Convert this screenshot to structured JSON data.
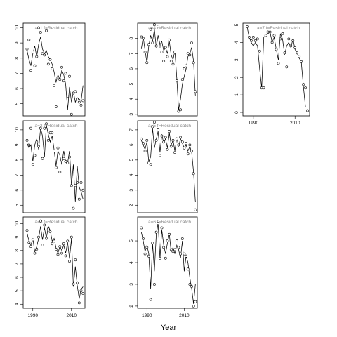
{
  "xlabel": "Year",
  "colors": {
    "line": "#000000",
    "title": "#888888"
  },
  "chart_data": [
    {
      "type": "line",
      "title": "a=1 f=Residual catch",
      "xlim": [
        1985,
        2017
      ],
      "ylim": [
        4.2,
        10.3
      ],
      "yticks": [
        5,
        6,
        7,
        8,
        9,
        10
      ],
      "xticks": [],
      "series": [
        {
          "name": "fitted",
          "x": [
            1987,
            1988,
            1989,
            1990,
            1991,
            1992,
            1993,
            1994,
            1995,
            1996,
            1997,
            1998,
            1999,
            2000,
            2001,
            2002,
            2003,
            2004,
            2005,
            2006,
            2007,
            2008,
            2009,
            2010,
            2011,
            2012,
            2013,
            2014,
            2015,
            2016
          ],
          "y": [
            8.5,
            7.9,
            7.5,
            8.3,
            8.8,
            8.1,
            8.9,
            9.4,
            8.6,
            8.3,
            8.5,
            8.1,
            7.9,
            7.6,
            7.1,
            6.4,
            6.9,
            6.6,
            7.2,
            6.9,
            6.3,
            4.6,
            6.1,
            5.1,
            5.8,
            5.1,
            5.4,
            5.3,
            5.2,
            6.2
          ]
        },
        {
          "name": "observed",
          "x": [
            1987,
            1988,
            1989,
            1990,
            1991,
            1992,
            1993,
            1994,
            1995,
            1996,
            1997,
            1998,
            1999,
            2000,
            2001,
            2002,
            2003,
            2004,
            2005,
            2006,
            2007,
            2008,
            2009,
            2010,
            2011,
            2012,
            2013,
            2014,
            2015,
            2016
          ],
          "y": [
            8.6,
            9.2,
            7.2,
            8.4,
            7.5,
            8.1,
            10.0,
            9.7,
            8.3,
            8.2,
            9.8,
            7.6,
            7.9,
            7.3,
            6.2,
            4.8,
            6.7,
            6.6,
            7.4,
            6.5,
            7.0,
            5.5,
            6.8,
            4.3,
            5.7,
            5.8,
            5.3,
            5.1,
            4.9,
            5.2
          ]
        }
      ]
    },
    {
      "type": "line",
      "title": "a=4 f=Residual catch",
      "xlim": [
        1985,
        2017
      ],
      "ylim": [
        2.9,
        9.0
      ],
      "yticks": [
        3,
        4,
        5,
        6,
        7,
        8
      ],
      "xticks": [],
      "series": [
        {
          "name": "fitted",
          "x": [
            1987,
            1988,
            1989,
            1990,
            1991,
            1992,
            1993,
            1994,
            1995,
            1996,
            1997,
            1998,
            1999,
            2000,
            2001,
            2002,
            2003,
            2004,
            2005,
            2006,
            2007,
            2008,
            2009,
            2010,
            2011,
            2012,
            2013,
            2014,
            2015,
            2016
          ],
          "y": [
            7.3,
            8.1,
            7.2,
            6.4,
            7.5,
            8.2,
            7.8,
            8.6,
            7.4,
            8.2,
            7.6,
            7.8,
            7.2,
            7.4,
            7.0,
            7.8,
            6.9,
            6.6,
            7.2,
            5.4,
            3.3,
            4.0,
            5.0,
            5.5,
            6.0,
            6.8,
            7.0,
            7.4,
            6.5,
            4.2
          ]
        },
        {
          "name": "observed",
          "x": [
            1987,
            1988,
            1989,
            1990,
            1991,
            1992,
            1993,
            1994,
            1995,
            1996,
            1997,
            1998,
            1999,
            2000,
            2001,
            2002,
            2003,
            2004,
            2005,
            2006,
            2007,
            2008,
            2009,
            2010,
            2011,
            2012,
            2013,
            2014,
            2015,
            2016
          ],
          "y": [
            8.1,
            8.0,
            7.1,
            6.4,
            7.6,
            8.6,
            7.7,
            8.9,
            7.5,
            8.8,
            7.5,
            7.1,
            6.5,
            7.4,
            6.8,
            7.9,
            6.5,
            6.3,
            7.1,
            5.2,
            3.2,
            3.3,
            5.3,
            6.0,
            6.2,
            7.0,
            6.9,
            7.7,
            6.4,
            4.5
          ]
        }
      ]
    },
    {
      "type": "line",
      "title": "a=7 f=Residual catch",
      "xlim": [
        1985,
        2017
      ],
      "ylim": [
        -0.2,
        5.1
      ],
      "yticks": [
        0,
        1,
        2,
        3,
        4,
        5
      ],
      "xticks": [
        1990,
        2010
      ],
      "series": [
        {
          "name": "fitted",
          "x": [
            1987,
            1988,
            1989,
            1990,
            1991,
            1992,
            1993,
            1994,
            1995,
            1996,
            1997,
            1998,
            1999,
            2000,
            2001,
            2002,
            2003,
            2004,
            2005,
            2006,
            2007,
            2008,
            2009,
            2010,
            2011,
            2012,
            2013,
            2014,
            2015,
            2016
          ],
          "y": [
            4.9,
            4.3,
            4.0,
            3.8,
            4.0,
            3.8,
            2.5,
            1.4,
            4.3,
            4.4,
            4.5,
            4.6,
            4.0,
            4.3,
            3.6,
            3.0,
            4.5,
            4.2,
            3.3,
            3.8,
            4.0,
            3.7,
            4.2,
            3.6,
            3.4,
            3.1,
            2.9,
            1.5,
            0.3,
            0.3
          ]
        },
        {
          "name": "observed",
          "x": [
            1987,
            1988,
            1989,
            1990,
            1991,
            1992,
            1993,
            1994,
            1995,
            1996,
            1997,
            1998,
            1999,
            2000,
            2001,
            2002,
            2003,
            2004,
            2005,
            2006,
            2007,
            2008,
            2009,
            2010,
            2011,
            2012,
            2013,
            2014,
            2015,
            2016
          ],
          "y": [
            4.9,
            4.3,
            4.1,
            4.3,
            4.1,
            4.2,
            3.5,
            1.4,
            1.4,
            4.4,
            4.6,
            4.6,
            4.0,
            4.4,
            3.6,
            2.8,
            4.2,
            4.5,
            3.4,
            2.6,
            4.2,
            3.8,
            4.1,
            3.7,
            3.4,
            3.2,
            2.9,
            1.6,
            1.4,
            0.1
          ]
        }
      ]
    },
    {
      "type": "line",
      "title": "a=2 f=Residual catch",
      "xlim": [
        1985,
        2017
      ],
      "ylim": [
        4.5,
        10.6
      ],
      "yticks": [
        5,
        6,
        7,
        8,
        9,
        10
      ],
      "xticks": [],
      "series": [
        {
          "name": "fitted",
          "x": [
            1987,
            1988,
            1989,
            1990,
            1991,
            1992,
            1993,
            1994,
            1995,
            1996,
            1997,
            1998,
            1999,
            2000,
            2001,
            2002,
            2003,
            2004,
            2005,
            2006,
            2007,
            2008,
            2009,
            2010,
            2011,
            2012,
            2013,
            2014,
            2015,
            2016
          ],
          "y": [
            9.1,
            8.8,
            9.0,
            7.9,
            9.0,
            9.4,
            8.7,
            10.1,
            9.6,
            8.2,
            10.3,
            9.7,
            9.2,
            9.6,
            8.7,
            7.6,
            8.6,
            8.3,
            7.7,
            8.6,
            7.9,
            7.8,
            8.6,
            6.3,
            7.7,
            5.2,
            7.6,
            6.2,
            5.9,
            5.4
          ]
        },
        {
          "name": "observed",
          "x": [
            1987,
            1988,
            1989,
            1990,
            1991,
            1992,
            1993,
            1994,
            1995,
            1996,
            1997,
            1998,
            1999,
            2000,
            2001,
            2002,
            2003,
            2004,
            2005,
            2006,
            2007,
            2008,
            2009,
            2010,
            2011,
            2012,
            2013,
            2014,
            2015,
            2016
          ],
          "y": [
            9.3,
            9.0,
            10.1,
            7.7,
            8.3,
            9.2,
            8.9,
            10.1,
            8.1,
            10.1,
            10.4,
            9.3,
            9.8,
            9.8,
            8.6,
            7.5,
            8.8,
            7.2,
            8.0,
            8.1,
            7.9,
            7.8,
            8.2,
            6.3,
            4.8,
            6.3,
            6.5,
            5.4,
            6.5,
            6.0
          ]
        }
      ]
    },
    {
      "type": "line",
      "title": "a=5 f=Residual catch",
      "xlim": [
        1985,
        2017
      ],
      "ylim": [
        1.5,
        7.6
      ],
      "yticks": [
        2,
        3,
        4,
        5,
        6,
        7
      ],
      "xticks": [],
      "series": [
        {
          "name": "fitted",
          "x": [
            1987,
            1988,
            1989,
            1990,
            1991,
            1992,
            1993,
            1994,
            1995,
            1996,
            1997,
            1998,
            1999,
            2000,
            2001,
            2002,
            2003,
            2004,
            2005,
            2006,
            2007,
            2008,
            2009,
            2010,
            2011,
            2012,
            2013,
            2014,
            2015,
            2016
          ],
          "y": [
            6.3,
            6.0,
            5.7,
            6.2,
            4.9,
            5.2,
            7.1,
            5.8,
            6.4,
            6.9,
            5.5,
            6.7,
            6.1,
            6.4,
            5.8,
            6.8,
            6.0,
            6.3,
            5.6,
            6.5,
            5.9,
            6.4,
            6.1,
            5.8,
            6.0,
            5.6,
            5.9,
            5.5,
            4.2,
            2.2
          ]
        },
        {
          "name": "observed",
          "x": [
            1987,
            1988,
            1989,
            1990,
            1991,
            1992,
            1993,
            1994,
            1995,
            1996,
            1997,
            1998,
            1999,
            2000,
            2001,
            2002,
            2003,
            2004,
            2005,
            2006,
            2007,
            2008,
            2009,
            2010,
            2011,
            2012,
            2013,
            2014,
            2015,
            2016
          ],
          "y": [
            6.4,
            6.1,
            5.6,
            6.3,
            4.8,
            4.7,
            7.2,
            7.5,
            6.3,
            7.0,
            5.3,
            6.6,
            6.2,
            6.5,
            5.7,
            6.9,
            5.9,
            6.3,
            5.5,
            6.4,
            6.0,
            6.5,
            6.2,
            5.8,
            6.1,
            5.4,
            6.0,
            5.6,
            4.1,
            1.7
          ]
        }
      ]
    },
    {
      "type": "line",
      "title": "a=3 f=Residual catch",
      "xlim": [
        1985,
        2017
      ],
      "ylim": [
        3.7,
        10.5
      ],
      "yticks": [
        4,
        5,
        6,
        7,
        8,
        9,
        10
      ],
      "xticks": [
        1990,
        2010
      ],
      "series": [
        {
          "name": "fitted",
          "x": [
            1987,
            1988,
            1989,
            1990,
            1991,
            1992,
            1993,
            1994,
            1995,
            1996,
            1997,
            1998,
            1999,
            2000,
            2001,
            2002,
            2003,
            2004,
            2005,
            2006,
            2007,
            2008,
            2009,
            2010,
            2011,
            2012,
            2013,
            2014,
            2015,
            2016
          ],
          "y": [
            9.3,
            8.7,
            8.4,
            8.9,
            7.9,
            8.3,
            8.9,
            9.8,
            8.8,
            9.7,
            8.9,
            9.8,
            9.5,
            8.7,
            8.9,
            8.2,
            7.8,
            8.3,
            8.0,
            8.4,
            7.8,
            8.6,
            7.4,
            8.9,
            5.3,
            6.8,
            5.4,
            4.4,
            5.1,
            5.3
          ]
        },
        {
          "name": "observed",
          "x": [
            1987,
            1988,
            1989,
            1990,
            1991,
            1992,
            1993,
            1994,
            1995,
            1996,
            1997,
            1998,
            1999,
            2000,
            2001,
            2002,
            2003,
            2004,
            2005,
            2006,
            2007,
            2008,
            2009,
            2010,
            2011,
            2012,
            2013,
            2014,
            2015,
            2016
          ],
          "y": [
            9.5,
            8.6,
            8.3,
            8.8,
            7.8,
            8.1,
            9.0,
            10.2,
            8.4,
            9.9,
            8.9,
            9.6,
            9.4,
            8.5,
            8.7,
            8.1,
            7.7,
            8.3,
            7.8,
            8.5,
            7.6,
            8.7,
            7.2,
            9.0,
            5.5,
            7.3,
            5.6,
            4.1,
            5.0,
            4.8
          ]
        }
      ]
    },
    {
      "type": "line",
      "title": "a=6 f=Residual catch",
      "xlim": [
        1985,
        2017
      ],
      "ylim": [
        1.9,
        6.1
      ],
      "yticks": [
        2,
        3,
        4,
        5
      ],
      "xticks": [
        1990,
        2010
      ],
      "series": [
        {
          "name": "fitted",
          "x": [
            1987,
            1988,
            1989,
            1990,
            1991,
            1992,
            1993,
            1994,
            1995,
            1996,
            1997,
            1998,
            1999,
            2000,
            2001,
            2002,
            2003,
            2004,
            2005,
            2006,
            2007,
            2008,
            2009,
            2010,
            2011,
            2012,
            2013,
            2014,
            2015,
            2016
          ],
          "y": [
            5.4,
            5.0,
            4.5,
            4.8,
            4.4,
            2.8,
            4.9,
            3.6,
            5.3,
            5.8,
            4.2,
            5.5,
            4.8,
            4.4,
            4.9,
            5.3,
            4.5,
            4.7,
            4.4,
            4.8,
            4.6,
            4.2,
            5.0,
            3.6,
            4.3,
            4.0,
            3.3,
            2.8,
            2.1,
            3.0
          ]
        },
        {
          "name": "observed",
          "x": [
            1987,
            1988,
            1989,
            1990,
            1991,
            1992,
            1993,
            1994,
            1995,
            1996,
            1997,
            1998,
            1999,
            2000,
            2001,
            2002,
            2003,
            2004,
            2005,
            2006,
            2007,
            2008,
            2009,
            2010,
            2011,
            2012,
            2013,
            2014,
            2015,
            2016
          ],
          "y": [
            5.6,
            5.1,
            4.4,
            4.7,
            4.3,
            2.3,
            4.9,
            3.0,
            5.4,
            5.8,
            4.2,
            5.6,
            4.7,
            4.2,
            5.0,
            5.3,
            4.6,
            4.5,
            4.6,
            5.0,
            4.7,
            4.4,
            5.1,
            4.4,
            4.3,
            3.7,
            3.0,
            2.9,
            2.0,
            2.2
          ]
        }
      ]
    }
  ]
}
